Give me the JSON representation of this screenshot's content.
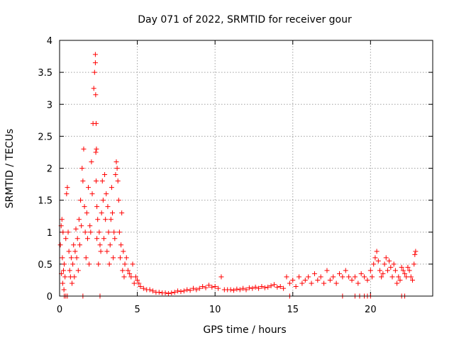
{
  "chart_data": {
    "type": "scatter",
    "title": "Day 071 of 2022, SRMTID for receiver gour",
    "xlabel": "GPS time / hours",
    "ylabel": "SRMTID / TECUs",
    "xlim": [
      0,
      24
    ],
    "ylim": [
      0,
      4
    ],
    "xticks": [
      0,
      5,
      10,
      15,
      20
    ],
    "xtick_labels": [
      "0",
      "5",
      "10",
      "15",
      "20"
    ],
    "yticks": [
      0,
      0.5,
      1,
      1.5,
      2,
      2.5,
      3,
      3.5,
      4
    ],
    "ytick_labels": [
      "0",
      "0.5",
      "1",
      "1.5",
      "2",
      "2.5",
      "3",
      "3.5",
      "4"
    ],
    "grid": true,
    "marker": "plus",
    "color": "#ff0000",
    "series": [
      {
        "name": "SRMTID",
        "x": [
          0.05,
          0.1,
          0.12,
          0.15,
          0.18,
          0.2,
          0.22,
          0.25,
          0.28,
          0.3,
          0.35,
          0.4,
          0.45,
          0.5,
          0.55,
          0.6,
          0.65,
          0.7,
          0.75,
          0.8,
          0.85,
          0.9,
          0.95,
          1.0,
          1.05,
          1.1,
          1.15,
          1.2,
          1.25,
          1.3,
          1.35,
          1.4,
          1.45,
          1.5,
          1.55,
          1.6,
          1.65,
          1.7,
          1.75,
          1.8,
          1.85,
          1.9,
          1.95,
          2.0,
          2.05,
          2.1,
          2.15,
          2.2,
          2.25,
          2.3,
          2.3,
          2.32,
          2.33,
          2.35,
          2.35,
          2.37,
          2.4,
          2.4,
          2.45,
          2.5,
          2.55,
          2.6,
          2.65,
          2.7,
          2.75,
          2.8,
          2.85,
          2.9,
          2.95,
          3.0,
          3.05,
          3.1,
          3.15,
          3.2,
          3.25,
          3.3,
          3.35,
          3.4,
          3.45,
          3.5,
          3.55,
          3.6,
          3.65,
          3.7,
          3.75,
          3.8,
          3.85,
          3.9,
          3.95,
          4.0,
          4.05,
          4.1,
          4.15,
          4.2,
          4.3,
          4.4,
          4.5,
          4.6,
          4.7,
          4.8,
          4.9,
          5.0,
          5.1,
          5.2,
          5.4,
          5.6,
          5.8,
          6.0,
          6.2,
          6.4,
          6.6,
          6.8,
          7.0,
          7.2,
          7.4,
          7.6,
          7.8,
          8.0,
          8.2,
          8.4,
          8.6,
          8.8,
          9.0,
          9.2,
          9.4,
          9.6,
          9.8,
          10.0,
          10.2,
          10.4,
          10.6,
          10.8,
          11.0,
          11.2,
          11.4,
          11.6,
          11.8,
          12.0,
          12.2,
          12.4,
          12.6,
          12.8,
          13.0,
          13.2,
          13.4,
          13.6,
          13.8,
          14.0,
          14.2,
          14.4,
          14.6,
          14.8,
          15.0,
          15.2,
          15.4,
          15.6,
          15.8,
          16.0,
          16.2,
          16.4,
          16.6,
          16.8,
          17.0,
          17.2,
          17.4,
          17.6,
          17.8,
          18.0,
          18.2,
          18.4,
          18.6,
          18.8,
          19.0,
          19.2,
          19.4,
          19.6,
          19.8,
          20.0,
          20.1,
          20.2,
          20.3,
          20.4,
          20.5,
          20.6,
          20.7,
          20.8,
          20.9,
          21.0,
          21.1,
          21.2,
          21.3,
          21.4,
          21.5,
          21.6,
          21.7,
          21.8,
          21.9,
          22.0,
          22.1,
          22.2,
          22.3,
          22.4,
          22.5,
          22.6,
          22.7,
          22.8,
          22.85,
          22.9,
          1.5,
          0.4,
          0.3,
          0.5,
          2.6,
          14.8,
          18.2,
          19.0,
          19.3,
          19.6,
          19.8,
          20.0,
          22.0,
          22.2
        ],
        "y": [
          0.8,
          1.1,
          0.35,
          1.2,
          0.6,
          0.2,
          1.0,
          0.4,
          0.1,
          0.5,
          0.3,
          0.9,
          1.6,
          1.7,
          1.0,
          0.7,
          0.4,
          0.3,
          0.6,
          0.2,
          0.5,
          0.8,
          0.3,
          0.7,
          1.05,
          0.6,
          0.9,
          0.4,
          1.2,
          0.8,
          1.5,
          1.1,
          2.0,
          1.8,
          2.3,
          1.4,
          1.0,
          0.6,
          1.3,
          0.9,
          1.7,
          0.5,
          1.1,
          1.0,
          2.1,
          1.6,
          2.7,
          3.25,
          3.5,
          3.65,
          3.78,
          3.15,
          2.25,
          2.7,
          1.8,
          2.3,
          1.4,
          0.9,
          1.2,
          0.5,
          1.0,
          0.8,
          0.7,
          1.3,
          1.8,
          1.5,
          0.9,
          1.9,
          1.2,
          1.6,
          0.7,
          1.4,
          1.0,
          0.5,
          0.8,
          1.2,
          1.7,
          1.3,
          0.6,
          1.0,
          0.9,
          1.9,
          2.1,
          2.0,
          1.8,
          1.5,
          1.0,
          0.6,
          0.8,
          1.3,
          0.4,
          0.7,
          0.3,
          0.5,
          0.6,
          0.4,
          0.35,
          0.3,
          0.5,
          0.2,
          0.3,
          0.25,
          0.2,
          0.15,
          0.12,
          0.1,
          0.1,
          0.08,
          0.06,
          0.06,
          0.05,
          0.05,
          0.04,
          0.05,
          0.06,
          0.08,
          0.07,
          0.08,
          0.1,
          0.09,
          0.12,
          0.1,
          0.12,
          0.15,
          0.13,
          0.17,
          0.14,
          0.15,
          0.12,
          0.3,
          0.1,
          0.1,
          0.1,
          0.09,
          0.11,
          0.1,
          0.12,
          0.1,
          0.13,
          0.12,
          0.14,
          0.12,
          0.15,
          0.13,
          0.14,
          0.16,
          0.18,
          0.14,
          0.15,
          0.12,
          0.3,
          0.2,
          0.25,
          0.15,
          0.3,
          0.2,
          0.25,
          0.3,
          0.2,
          0.35,
          0.25,
          0.3,
          0.2,
          0.4,
          0.25,
          0.3,
          0.2,
          0.35,
          0.3,
          0.4,
          0.3,
          0.25,
          0.3,
          0.2,
          0.35,
          0.3,
          0.25,
          0.4,
          0.3,
          0.5,
          0.6,
          0.7,
          0.55,
          0.4,
          0.3,
          0.35,
          0.5,
          0.6,
          0.4,
          0.55,
          0.45,
          0.3,
          0.5,
          0.4,
          0.2,
          0.3,
          0.25,
          0.45,
          0.4,
          0.35,
          0.3,
          0.45,
          0.4,
          0.3,
          0.25,
          0.5,
          0.65,
          0.7,
          0.0,
          0.0,
          0.0,
          0.0,
          0.0,
          0.0,
          0.0,
          0.0,
          0.0,
          0.0,
          0.0,
          0.0,
          0.0,
          0.0
        ]
      }
    ]
  }
}
